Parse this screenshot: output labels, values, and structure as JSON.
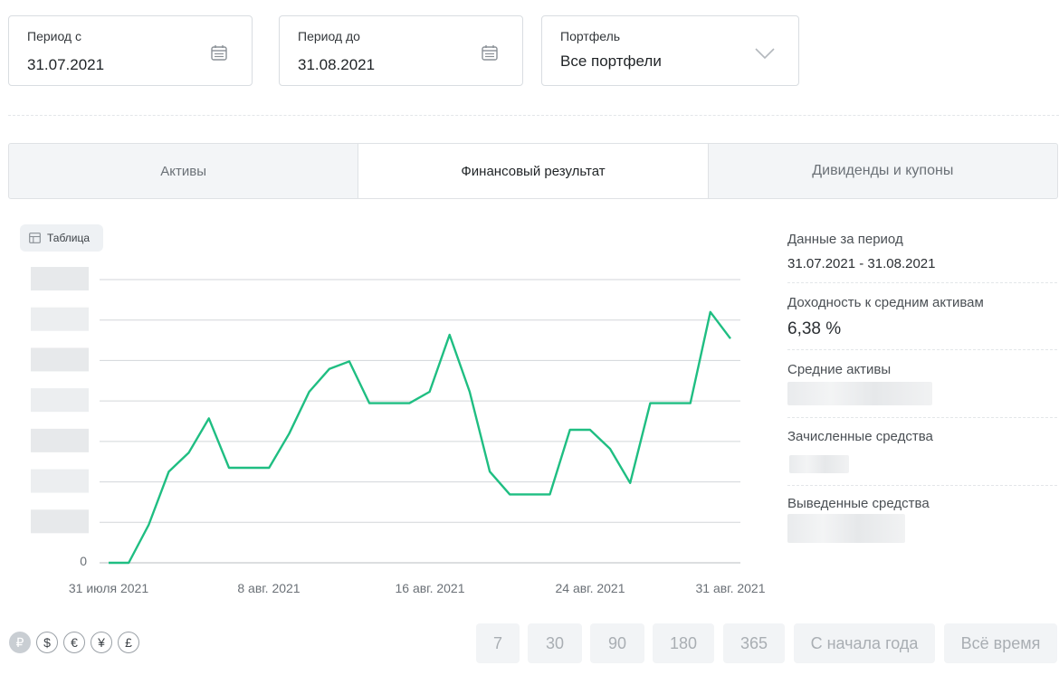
{
  "filters": {
    "period_from": {
      "label": "Период с",
      "value": "31.07.2021"
    },
    "period_to": {
      "label": "Период до",
      "value": "31.08.2021"
    },
    "portfolio": {
      "label": "Портфель",
      "value": "Все портфели"
    }
  },
  "tabs": [
    {
      "label": "Активы"
    },
    {
      "label": "Финансовый результат",
      "active": true
    },
    {
      "label": "Дивиденды и купоны"
    }
  ],
  "table_button": {
    "label": "Таблица"
  },
  "chart_data": {
    "type": "line",
    "x_tick_labels": [
      "31 июля 2021",
      "8 авг. 2021",
      "16 авг. 2021",
      "24 авг. 2021",
      "31 авг. 2021"
    ],
    "y_tick_labels": [
      "0"
    ],
    "gridlines": 8,
    "x": [
      "2021-07-31",
      "2021-08-01",
      "2021-08-02",
      "2021-08-03",
      "2021-08-04",
      "2021-08-05",
      "2021-08-06",
      "2021-08-07",
      "2021-08-08",
      "2021-08-09",
      "2021-08-10",
      "2021-08-11",
      "2021-08-12",
      "2021-08-13",
      "2021-08-14",
      "2021-08-15",
      "2021-08-16",
      "2021-08-17",
      "2021-08-18",
      "2021-08-19",
      "2021-08-20",
      "2021-08-21",
      "2021-08-22",
      "2021-08-23",
      "2021-08-24",
      "2021-08-25",
      "2021-08-26",
      "2021-08-27",
      "2021-08-28",
      "2021-08-29",
      "2021-08-30",
      "2021-08-31"
    ],
    "values": [
      0,
      0,
      1.0,
      2.4,
      2.9,
      3.8,
      2.5,
      2.5,
      2.5,
      3.4,
      4.5,
      5.1,
      5.3,
      4.2,
      4.2,
      4.2,
      4.5,
      6.0,
      4.5,
      2.4,
      1.8,
      1.8,
      1.8,
      3.5,
      3.5,
      3.0,
      2.1,
      4.2,
      4.2,
      4.2,
      6.6,
      5.9
    ],
    "line_color": "#1fbe82",
    "ylim": [
      0,
      7
    ]
  },
  "summary": {
    "period": {
      "label": "Данные за период",
      "value": "31.07.2021 - 31.08.2021"
    },
    "yield": {
      "label": "Доходность к средним активам",
      "value": "6,38 %"
    },
    "avg_assets": {
      "label": "Средние активы"
    },
    "deposited": {
      "label": "Зачисленные средства"
    },
    "withdrawn": {
      "label": "Выведенные средства"
    }
  },
  "currencies": [
    {
      "symbol": "₽",
      "name": "ruble-icon",
      "active": true
    },
    {
      "symbol": "$",
      "name": "dollar-icon"
    },
    {
      "symbol": "€",
      "name": "euro-icon"
    },
    {
      "symbol": "¥",
      "name": "yen-icon"
    },
    {
      "symbol": "£",
      "name": "pound-icon"
    }
  ],
  "periods": [
    "7",
    "30",
    "90",
    "180",
    "365",
    "С начала года",
    "Всё время"
  ]
}
